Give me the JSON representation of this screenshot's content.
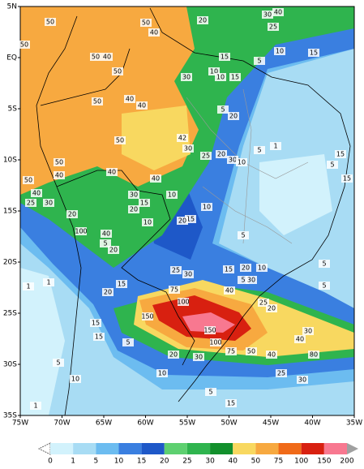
{
  "map": {
    "lat_ticks": [
      {
        "value": 5,
        "label": "5N"
      },
      {
        "value": 0,
        "label": "EQ"
      },
      {
        "value": -5,
        "label": "5S"
      },
      {
        "value": -10,
        "label": "10S"
      },
      {
        "value": -15,
        "label": "15S"
      },
      {
        "value": -20,
        "label": "20S"
      },
      {
        "value": -25,
        "label": "25S"
      },
      {
        "value": -30,
        "label": "30S"
      },
      {
        "value": -35,
        "label": "35S"
      }
    ],
    "lon_ticks": [
      {
        "value": -75,
        "label": "75W"
      },
      {
        "value": -70,
        "label": "70W"
      },
      {
        "value": -65,
        "label": "65W"
      },
      {
        "value": -60,
        "label": "60W"
      },
      {
        "value": -55,
        "label": "55W"
      },
      {
        "value": -50,
        "label": "50W"
      },
      {
        "value": -45,
        "label": "45W"
      },
      {
        "value": -40,
        "label": "40W"
      },
      {
        "value": -35,
        "label": "35W"
      }
    ],
    "contour_labels": [
      30,
      40,
      20,
      25,
      50,
      50,
      40,
      50,
      40,
      10,
      15,
      50,
      10,
      15,
      5,
      50,
      30,
      10,
      15,
      50,
      40,
      40,
      5,
      20,
      50,
      42,
      30,
      25,
      20,
      30,
      10,
      5,
      1,
      15,
      5,
      15,
      50,
      40,
      50,
      40,
      30,
      40,
      40,
      25,
      30,
      20,
      15,
      10,
      10,
      15,
      20,
      10,
      20,
      5,
      100,
      5,
      40,
      20,
      15,
      5,
      10,
      20,
      15,
      25,
      30,
      5,
      1,
      1,
      20,
      75,
      40,
      30,
      5,
      100,
      25,
      20,
      150,
      150,
      100,
      75,
      50,
      40,
      30,
      40,
      80,
      15,
      15,
      5,
      20,
      30,
      10,
      25,
      30,
      10,
      5,
      5,
      15,
      1
    ],
    "colorbar": {
      "labels": [
        0,
        1,
        5,
        10,
        15,
        20,
        25,
        30,
        40,
        50,
        75,
        100,
        150,
        200
      ],
      "colors": [
        "#ffffff",
        "#d2f2fc",
        "#a8dcf4",
        "#6cbcf0",
        "#3a7fe0",
        "#1e58c8",
        "#5ed070",
        "#2fb44e",
        "#12902c",
        "#f8d860",
        "#f7a940",
        "#f06a18",
        "#d82010",
        "#f87890",
        "#a0a0a0"
      ]
    }
  }
}
